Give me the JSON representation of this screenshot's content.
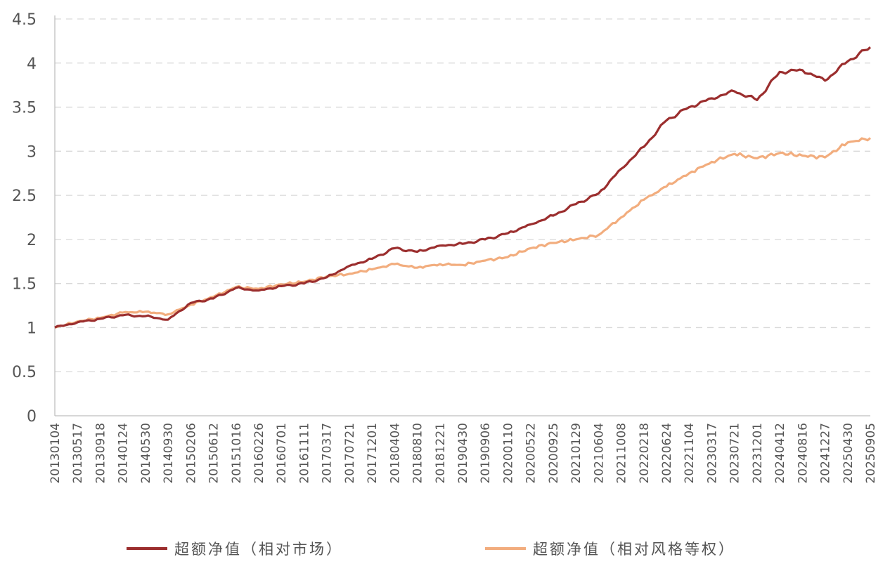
{
  "chart_data": {
    "type": "line",
    "title": "",
    "xlabel": "",
    "ylabel": "",
    "ylim": [
      0,
      4.5
    ],
    "yticks": [
      "0",
      "0.5",
      "1",
      "1.5",
      "2",
      "2.5",
      "3",
      "3.5",
      "4",
      "4.5"
    ],
    "xticks": [
      "20130104",
      "20130517",
      "20130918",
      "20140124",
      "20140530",
      "20140930",
      "20150206",
      "20150612",
      "20151016",
      "20160226",
      "20160701",
      "20161111",
      "20170317",
      "20170721",
      "20171201",
      "20180404",
      "20180810",
      "20181221",
      "20190430",
      "20190906",
      "20200110",
      "20200522",
      "20200925",
      "20210129",
      "20210604",
      "20211008",
      "20220218",
      "20220624",
      "20221104",
      "20230317",
      "20230721",
      "20231201",
      "20240412",
      "20240816",
      "20241227",
      "20250430",
      "20250905"
    ],
    "grid": true,
    "legend_position": "bottom",
    "series": [
      {
        "name": "超额净值（相对市场）",
        "color": "#9b2e2e",
        "values": [
          1.0,
          1.06,
          1.1,
          1.14,
          1.13,
          1.09,
          1.28,
          1.33,
          1.45,
          1.42,
          1.47,
          1.5,
          1.57,
          1.7,
          1.78,
          1.9,
          1.86,
          1.93,
          1.95,
          2.0,
          2.07,
          2.17,
          2.27,
          2.4,
          2.52,
          2.8,
          3.05,
          3.35,
          3.5,
          3.6,
          3.68,
          3.58,
          3.9,
          3.92,
          3.8,
          4.02,
          4.18
        ]
      },
      {
        "name": "超额净值（相对风格等权）",
        "color": "#f2ad7e",
        "values": [
          1.0,
          1.07,
          1.11,
          1.17,
          1.18,
          1.15,
          1.26,
          1.35,
          1.46,
          1.44,
          1.49,
          1.52,
          1.58,
          1.61,
          1.66,
          1.72,
          1.68,
          1.72,
          1.71,
          1.76,
          1.8,
          1.9,
          1.96,
          2.0,
          2.05,
          2.25,
          2.45,
          2.6,
          2.75,
          2.88,
          2.97,
          2.92,
          2.98,
          2.95,
          2.93,
          3.1,
          3.15
        ]
      }
    ]
  }
}
